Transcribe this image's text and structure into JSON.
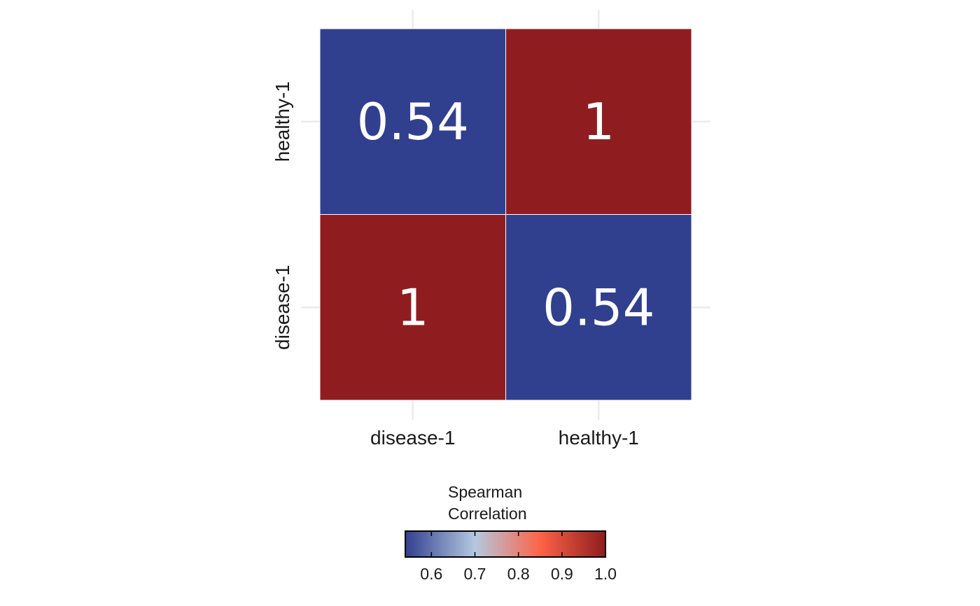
{
  "chart_data": {
    "type": "heatmap",
    "x_categories": [
      "disease-1",
      "healthy-1"
    ],
    "y_categories": [
      "disease-1",
      "healthy-1"
    ],
    "cells": [
      {
        "x": "disease-1",
        "y": "disease-1",
        "value": 1,
        "label": "1"
      },
      {
        "x": "healthy-1",
        "y": "disease-1",
        "value": 0.54,
        "label": "0.54"
      },
      {
        "x": "disease-1",
        "y": "healthy-1",
        "value": 0.54,
        "label": "0.54"
      },
      {
        "x": "healthy-1",
        "y": "healthy-1",
        "value": 1,
        "label": "1"
      }
    ],
    "legend": {
      "title": "Spearman\nCorrelation",
      "position": "bottom",
      "range": [
        0.54,
        1.0
      ],
      "ticks": [
        0.6,
        0.7,
        0.8,
        0.9,
        1.0
      ],
      "tick_labels": [
        "0.6",
        "0.7",
        "0.8",
        "0.9",
        "1.0"
      ],
      "color_stops": [
        {
          "value": 0.54,
          "color": "#313f8f"
        },
        {
          "value": 0.7,
          "color": "#b4c8e0"
        },
        {
          "value": 0.85,
          "color": "#fd6347"
        },
        {
          "value": 1.0,
          "color": "#8f1d1f"
        }
      ]
    },
    "grid": true,
    "colors": {
      "low": "#313f8f",
      "high": "#8f1d1f",
      "cell_text": "#ffffff",
      "grid": "#ebebeb"
    }
  }
}
